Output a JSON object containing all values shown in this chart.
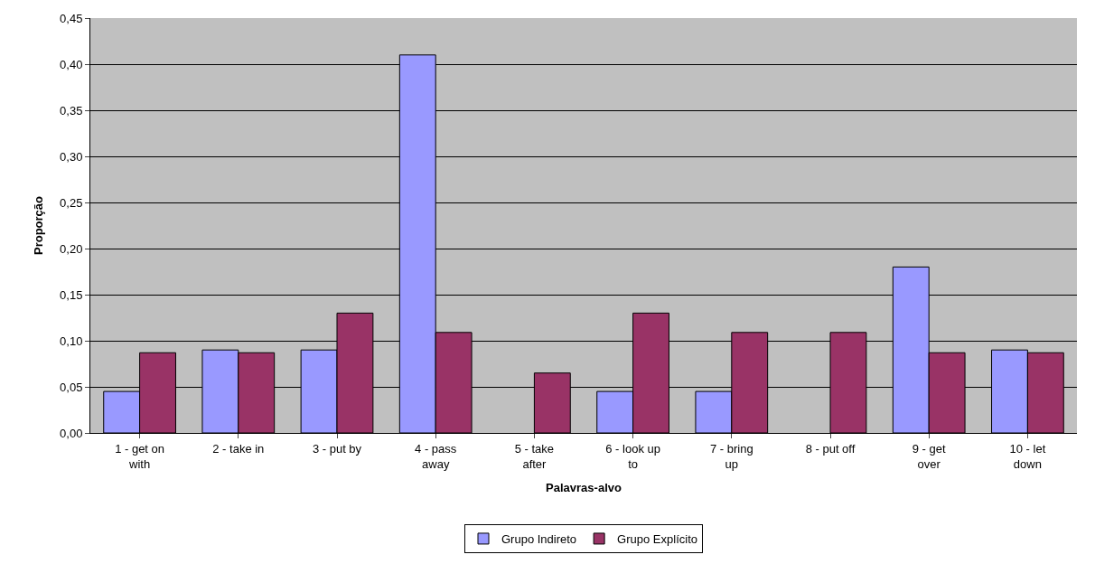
{
  "chart_data": {
    "type": "bar",
    "xlabel": "Palavras-alvo",
    "ylabel": "Proporção",
    "categories": [
      "1 - get on\nwith",
      "2 - take in",
      "3 - put by",
      "4 - pass\naway",
      "5 - take\nafter",
      "6 - look up\nto",
      "7 - bring\nup",
      "8 - put off",
      "9 - get\nover",
      "10 - let\ndown"
    ],
    "series": [
      {
        "name": "Grupo Indireto",
        "color": "#9999ff",
        "values": [
          0.045,
          0.09,
          0.09,
          0.41,
          0,
          0.045,
          0.045,
          0,
          0.18,
          0.09
        ]
      },
      {
        "name": "Grupo Explícito",
        "color": "#993366",
        "values": [
          0.087,
          0.087,
          0.13,
          0.109,
          0.065,
          0.13,
          0.109,
          0.109,
          0.087,
          0.087
        ]
      }
    ],
    "ylim": [
      0,
      0.45
    ],
    "yticks": [
      {
        "value": 0,
        "label": "0,00"
      },
      {
        "value": 0.05,
        "label": "0,05"
      },
      {
        "value": 0.1,
        "label": "0,10"
      },
      {
        "value": 0.15,
        "label": "0,15"
      },
      {
        "value": 0.2,
        "label": "0,20"
      },
      {
        "value": 0.25,
        "label": "0,25"
      },
      {
        "value": 0.3,
        "label": "0,30"
      },
      {
        "value": 0.35,
        "label": "0,35"
      },
      {
        "value": 0.4,
        "label": "0,40"
      },
      {
        "value": 0.45,
        "label": "0,45"
      }
    ],
    "grid": "y",
    "legend": "bottom"
  }
}
